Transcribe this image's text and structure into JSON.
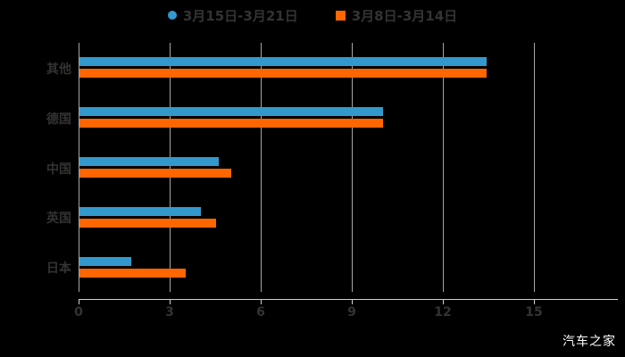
{
  "watermark": "汽车之家",
  "colors": {
    "background": "#000000",
    "series1": "#3399CC",
    "series2": "#FF6600",
    "text": "#333333",
    "axis": "#CFCFCF",
    "grid": "#A6A6A6",
    "watermark": "#FFFFFF"
  },
  "chart_data": {
    "type": "bar",
    "orientation": "horizontal",
    "title": "",
    "xlabel": "",
    "ylabel": "",
    "categories": [
      "其他",
      "德国",
      "中国",
      "英国",
      "日本"
    ],
    "series": [
      {
        "name": "3月15日-3月21日",
        "color": "#3399CC",
        "marker": "circle",
        "values": [
          13.4,
          10.0,
          4.6,
          4.0,
          1.7
        ]
      },
      {
        "name": "3月8日-3月14日",
        "color": "#FF6600",
        "marker": "square",
        "values": [
          13.4,
          10.0,
          5.0,
          4.5,
          3.5
        ]
      }
    ],
    "x_ticks": [
      0,
      3,
      6,
      9,
      12,
      15
    ],
    "xlim": [
      0,
      15
    ],
    "grid": true,
    "legend_position": "top"
  }
}
